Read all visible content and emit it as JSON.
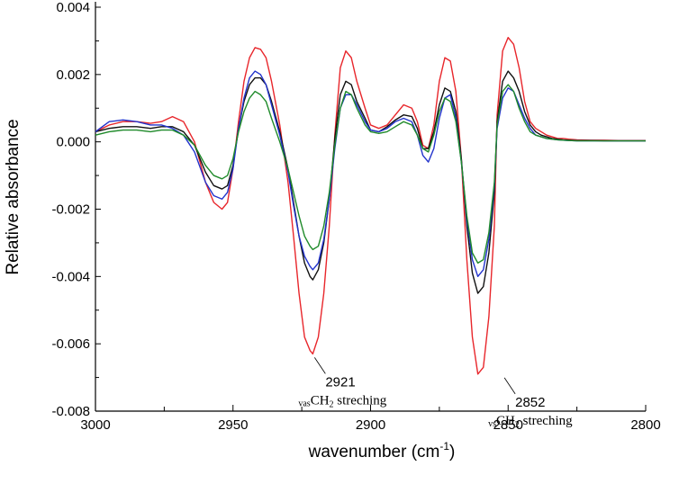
{
  "chart_data": {
    "type": "line",
    "xlabel": "wavenumber (cm",
    "xlabel_sup": "-1",
    "xlabel_end": ")",
    "ylabel": "Relative absorbance",
    "xlim": [
      3000,
      2800
    ],
    "ylim": [
      -0.008,
      0.004
    ],
    "x_reversed": true,
    "grid": false,
    "x_ticks": [
      3000,
      2950,
      2900,
      2850,
      2800
    ],
    "y_ticks": [
      -0.008,
      -0.006,
      -0.004,
      -0.002,
      0.0,
      0.002,
      0.004
    ],
    "y_tick_labels": [
      "-0.008",
      "-0.006",
      "-0.004",
      "-0.002",
      "0.000",
      "0.002",
      "0.004"
    ],
    "colors": {
      "red": "#e8262b",
      "black": "#111111",
      "blue": "#2233cc",
      "green": "#1f8a2a"
    },
    "series": [
      {
        "color": "red",
        "x": [
          3000,
          2995,
          2990,
          2985,
          2980,
          2976,
          2972,
          2968,
          2964,
          2960,
          2957,
          2954,
          2952,
          2950,
          2948,
          2946,
          2944,
          2942,
          2940,
          2938,
          2936,
          2933,
          2930,
          2928,
          2926,
          2924,
          2922,
          2921,
          2919,
          2917,
          2915,
          2913,
          2911,
          2909,
          2907,
          2905,
          2902,
          2900,
          2897,
          2894,
          2891,
          2888,
          2885,
          2883,
          2881,
          2879,
          2877,
          2875,
          2873,
          2871,
          2869,
          2867,
          2865,
          2863,
          2861,
          2859,
          2857,
          2855,
          2854,
          2852,
          2850,
          2848,
          2846,
          2844,
          2842,
          2840,
          2838,
          2836,
          2834,
          2832,
          2830,
          2828,
          2825,
          2820,
          2815,
          2810,
          2805,
          2800
        ],
        "y": [
          0.0003,
          0.0005,
          0.0006,
          0.0006,
          0.00055,
          0.0006,
          0.00075,
          0.0006,
          0.0,
          -0.0012,
          -0.0018,
          -0.002,
          -0.0018,
          -0.0008,
          0.0006,
          0.0018,
          0.0025,
          0.0028,
          0.00275,
          0.0025,
          0.0018,
          0.0005,
          -0.0012,
          -0.0028,
          -0.0045,
          -0.0058,
          -0.0062,
          -0.0063,
          -0.0058,
          -0.0045,
          -0.0025,
          0.0002,
          0.0022,
          0.0027,
          0.0025,
          0.0018,
          0.001,
          0.0005,
          0.0004,
          0.0005,
          0.0008,
          0.0011,
          0.001,
          0.0006,
          -0.0001,
          -0.0002,
          0.0005,
          0.0018,
          0.0025,
          0.0024,
          0.0015,
          -0.0005,
          -0.0035,
          -0.0058,
          -0.0069,
          -0.0067,
          -0.0052,
          -0.0025,
          0.0008,
          0.0027,
          0.0031,
          0.0029,
          0.0022,
          0.0012,
          0.0006,
          0.0004,
          0.0003,
          0.0002,
          0.00015,
          0.0001,
          0.0001,
          8e-05,
          6e-05,
          5e-05,
          5e-05,
          4e-05,
          4e-05,
          4e-05
        ]
      },
      {
        "color": "black",
        "x": [
          3000,
          2995,
          2990,
          2985,
          2980,
          2976,
          2972,
          2968,
          2964,
          2960,
          2957,
          2954,
          2952,
          2950,
          2948,
          2946,
          2944,
          2942,
          2940,
          2938,
          2936,
          2933,
          2930,
          2928,
          2926,
          2924,
          2922,
          2921,
          2919,
          2917,
          2915,
          2913,
          2911,
          2909,
          2907,
          2905,
          2902,
          2900,
          2897,
          2894,
          2891,
          2888,
          2885,
          2883,
          2881,
          2879,
          2877,
          2875,
          2873,
          2871,
          2869,
          2867,
          2865,
          2863,
          2861,
          2859,
          2857,
          2855,
          2854,
          2852,
          2850,
          2848,
          2846,
          2844,
          2842,
          2840,
          2838,
          2836,
          2834,
          2832,
          2830,
          2828,
          2825,
          2820,
          2815,
          2810,
          2805,
          2800
        ],
        "y": [
          0.0003,
          0.0004,
          0.00045,
          0.00045,
          0.0004,
          0.00045,
          0.00045,
          0.0003,
          -0.0001,
          -0.0009,
          -0.0013,
          -0.0014,
          -0.0013,
          -0.0007,
          0.0004,
          0.0012,
          0.0017,
          0.0019,
          0.0019,
          0.0017,
          0.0012,
          0.0003,
          -0.0008,
          -0.0018,
          -0.0028,
          -0.0036,
          -0.004,
          -0.0041,
          -0.0038,
          -0.003,
          -0.0017,
          0.0001,
          0.0014,
          0.0018,
          0.0017,
          0.0012,
          0.0007,
          0.00035,
          0.0003,
          0.00045,
          0.00065,
          0.0008,
          0.00075,
          0.0004,
          -0.0002,
          -0.0002,
          0.0003,
          0.0011,
          0.0016,
          0.0015,
          0.0009,
          -0.0005,
          -0.0025,
          -0.0039,
          -0.0045,
          -0.0043,
          -0.0033,
          -0.0015,
          0.0006,
          0.0018,
          0.0021,
          0.0019,
          0.0015,
          0.0009,
          0.0005,
          0.0003,
          0.0002,
          0.00015,
          0.0001,
          8e-05,
          6e-05,
          5e-05,
          4e-05,
          4e-05,
          3e-05,
          3e-05,
          3e-05,
          3e-05
        ]
      },
      {
        "color": "blue",
        "x": [
          3000,
          2995,
          2990,
          2985,
          2980,
          2976,
          2972,
          2968,
          2964,
          2960,
          2957,
          2954,
          2952,
          2950,
          2948,
          2946,
          2944,
          2942,
          2940,
          2938,
          2936,
          2933,
          2930,
          2928,
          2926,
          2924,
          2922,
          2921,
          2919,
          2917,
          2915,
          2913,
          2911,
          2909,
          2907,
          2905,
          2902,
          2900,
          2897,
          2894,
          2891,
          2888,
          2885,
          2883,
          2881,
          2879,
          2877,
          2875,
          2873,
          2871,
          2869,
          2867,
          2865,
          2863,
          2861,
          2859,
          2857,
          2855,
          2854,
          2852,
          2850,
          2848,
          2846,
          2844,
          2842,
          2840,
          2838,
          2836,
          2834,
          2832,
          2830,
          2828,
          2825,
          2820,
          2815,
          2810,
          2805,
          2800
        ],
        "y": [
          0.0003,
          0.0006,
          0.00065,
          0.0006,
          0.0005,
          0.0005,
          0.0004,
          0.0002,
          -0.0003,
          -0.0012,
          -0.0016,
          -0.0017,
          -0.0015,
          -0.0008,
          0.0004,
          0.0013,
          0.0019,
          0.0021,
          0.002,
          0.0017,
          0.0011,
          0.0002,
          -0.0009,
          -0.0019,
          -0.0028,
          -0.0034,
          -0.0037,
          -0.0038,
          -0.0036,
          -0.0029,
          -0.0017,
          -0.0002,
          0.001,
          0.0014,
          0.0014,
          0.0011,
          0.0006,
          0.00035,
          0.0003,
          0.0004,
          0.0006,
          0.0007,
          0.0006,
          0.0002,
          -0.0004,
          -0.0006,
          -0.0002,
          0.0007,
          0.0013,
          0.0014,
          0.0007,
          -0.0006,
          -0.0023,
          -0.0035,
          -0.004,
          -0.0038,
          -0.0029,
          -0.0013,
          0.0004,
          0.0013,
          0.0016,
          0.0015,
          0.0011,
          0.0007,
          0.0004,
          0.0002,
          0.00015,
          0.0001,
          8e-05,
          6e-05,
          5e-05,
          4e-05,
          3e-05,
          3e-05,
          3e-05,
          3e-05,
          3e-05,
          3e-05
        ]
      },
      {
        "color": "green",
        "x": [
          3000,
          2995,
          2990,
          2985,
          2980,
          2976,
          2972,
          2968,
          2964,
          2960,
          2957,
          2954,
          2952,
          2950,
          2948,
          2946,
          2944,
          2942,
          2940,
          2938,
          2936,
          2933,
          2930,
          2928,
          2926,
          2924,
          2922,
          2921,
          2919,
          2917,
          2915,
          2913,
          2911,
          2909,
          2907,
          2905,
          2902,
          2900,
          2897,
          2894,
          2891,
          2888,
          2885,
          2883,
          2881,
          2879,
          2877,
          2875,
          2873,
          2871,
          2869,
          2867,
          2865,
          2863,
          2861,
          2859,
          2857,
          2855,
          2854,
          2852,
          2850,
          2848,
          2846,
          2844,
          2842,
          2840,
          2838,
          2836,
          2834,
          2832,
          2830,
          2828,
          2825,
          2820,
          2815,
          2810,
          2805,
          2800
        ],
        "y": [
          0.0002,
          0.0003,
          0.00035,
          0.00035,
          0.0003,
          0.00035,
          0.00035,
          0.0002,
          -0.0001,
          -0.0007,
          -0.001,
          -0.0011,
          -0.001,
          -0.0005,
          0.0003,
          0.0009,
          0.0013,
          0.0015,
          0.0014,
          0.0012,
          0.0007,
          0.0,
          -0.0008,
          -0.0015,
          -0.0022,
          -0.0028,
          -0.0031,
          -0.0032,
          -0.0031,
          -0.0025,
          -0.0015,
          -0.0001,
          0.001,
          0.0015,
          0.0014,
          0.001,
          0.0005,
          0.0003,
          0.00025,
          0.0003,
          0.00045,
          0.0006,
          0.0005,
          0.0002,
          -0.0002,
          -0.0003,
          0.0002,
          0.0009,
          0.0013,
          0.0012,
          0.0006,
          -0.0006,
          -0.0022,
          -0.0033,
          -0.0036,
          -0.0035,
          -0.0027,
          -0.0012,
          0.0005,
          0.0015,
          0.0017,
          0.0015,
          0.001,
          0.0006,
          0.0003,
          0.0002,
          0.00015,
          0.0001,
          8e-05,
          6e-05,
          5e-05,
          4e-05,
          3e-05,
          3e-05,
          3e-05,
          3e-05,
          3e-05,
          3e-05
        ]
      }
    ],
    "annotations": [
      {
        "value": "2921",
        "sub": "vas",
        "text": "CH",
        "text_sub": "2",
        "text_end": " streching",
        "x": 2921,
        "y": -0.0063
      },
      {
        "value": "2852",
        "sub": "vs",
        "text": "CH",
        "text_sub": "2",
        "text_end": " streching",
        "x": 2852,
        "y": -0.0069
      }
    ]
  }
}
